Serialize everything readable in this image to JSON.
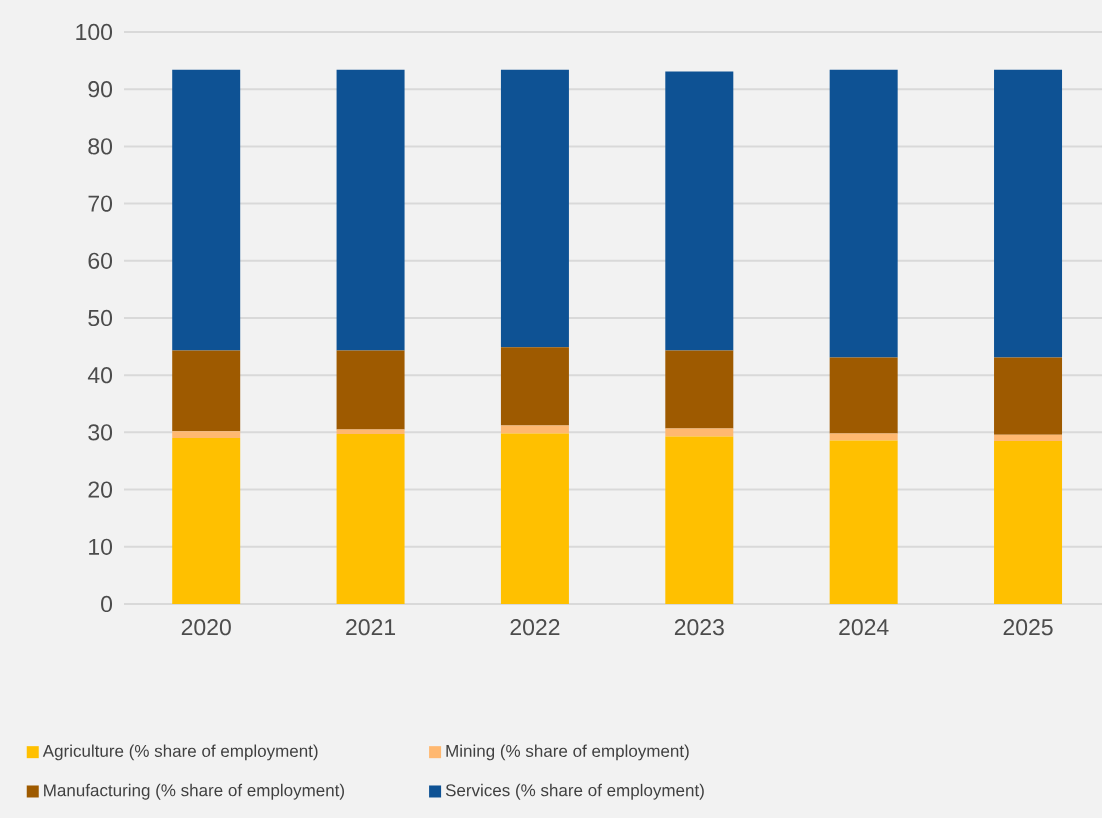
{
  "chart_data": {
    "type": "bar",
    "stacked": true,
    "categories": [
      "2020",
      "2021",
      "2022",
      "2023",
      "2024",
      "2025"
    ],
    "series": [
      {
        "name": "Agriculture (% share of employment)",
        "color": "#ffc000",
        "values": [
          29.0,
          29.7,
          29.8,
          29.3,
          28.6,
          28.5
        ]
      },
      {
        "name": "Mining (% share of employment)",
        "color": "#ffb870",
        "values": [
          1.2,
          0.8,
          1.4,
          1.4,
          1.2,
          1.1
        ]
      },
      {
        "name": "Manufacturing (% share of employment)",
        "color": "#9e5a00",
        "values": [
          14.1,
          13.8,
          13.7,
          13.6,
          13.3,
          13.5
        ]
      },
      {
        "name": "Services (% share of employment)",
        "color": "#0e5294",
        "values": [
          49.1,
          49.1,
          48.5,
          48.8,
          50.3,
          50.3
        ]
      }
    ],
    "ylim": [
      0,
      100
    ],
    "yticks": [
      0,
      10,
      20,
      30,
      40,
      50,
      60,
      70,
      80,
      90,
      100
    ],
    "grid": "y",
    "legend": "bottom"
  }
}
